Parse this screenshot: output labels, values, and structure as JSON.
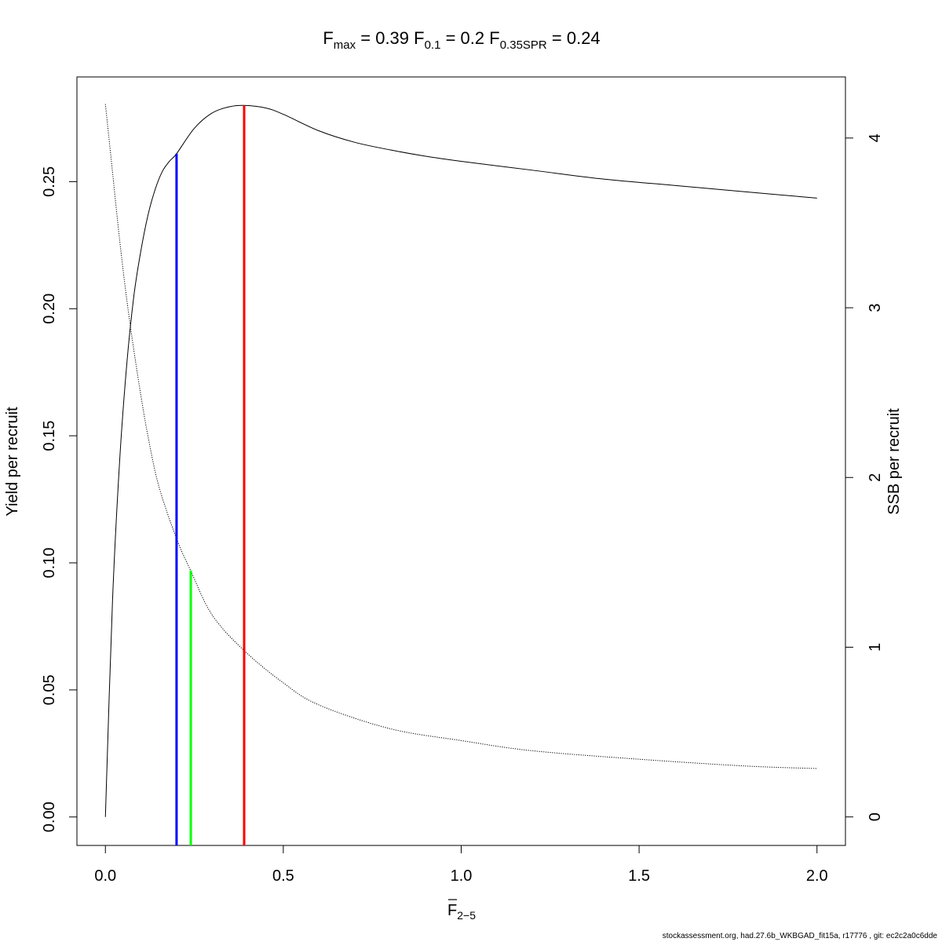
{
  "chart_data": {
    "type": "line",
    "title": {
      "fmax": {
        "symbol": "F",
        "sub": "max",
        "value": "0.39"
      },
      "f01": {
        "symbol": "F",
        "sub": "0.1",
        "value": "0.2"
      },
      "fspr": {
        "symbol": "F",
        "sub": "0.35SPR",
        "value": "0.24"
      }
    },
    "xlabel": {
      "symbol": "F",
      "sub": "2−5"
    },
    "ylabel_left": "Yield per recruit",
    "ylabel_right": "SSB per recruit",
    "xlim": [
      -0.08,
      2.08
    ],
    "ylim_left": [
      -0.0112,
      0.2912
    ],
    "ylim_right": [
      -0.168,
      4.36
    ],
    "x_ticks": [
      0.0,
      0.5,
      1.0,
      1.5,
      2.0
    ],
    "x_tick_labels": [
      "0.0",
      "0.5",
      "1.0",
      "1.5",
      "2.0"
    ],
    "y_left_ticks": [
      0.0,
      0.05,
      0.1,
      0.15,
      0.2,
      0.25
    ],
    "y_left_tick_labels": [
      "0.00",
      "0.05",
      "0.10",
      "0.15",
      "0.20",
      "0.25"
    ],
    "y_right_ticks": [
      0,
      1,
      2,
      3,
      4
    ],
    "y_right_tick_labels": [
      "0",
      "1",
      "2",
      "3",
      "4"
    ],
    "series": [
      {
        "axis": "left",
        "style": "solid",
        "color": "#000000",
        "x": [
          0.0,
          0.02,
          0.04,
          0.06,
          0.08,
          0.1,
          0.12,
          0.14,
          0.16,
          0.18,
          0.2,
          0.25,
          0.3,
          0.35,
          0.39,
          0.45,
          0.5,
          0.6,
          0.7,
          0.8,
          0.9,
          1.0,
          1.2,
          1.4,
          1.6,
          1.8,
          2.0
        ],
        "y": [
          0.0,
          0.085,
          0.14,
          0.178,
          0.205,
          0.223,
          0.237,
          0.247,
          0.254,
          0.258,
          0.261,
          0.271,
          0.277,
          0.2795,
          0.28,
          0.279,
          0.2765,
          0.27,
          0.2655,
          0.2625,
          0.26,
          0.258,
          0.2545,
          0.251,
          0.2485,
          0.246,
          0.2435
        ]
      },
      {
        "axis": "right",
        "style": "dotted",
        "color": "#000000",
        "x": [
          0.0,
          0.02,
          0.04,
          0.06,
          0.08,
          0.1,
          0.12,
          0.15,
          0.2,
          0.24,
          0.3,
          0.39,
          0.5,
          0.6,
          0.8,
          1.0,
          1.2,
          1.5,
          1.8,
          2.0
        ],
        "y": [
          4.2,
          3.8,
          3.4,
          3.05,
          2.75,
          2.48,
          2.24,
          1.95,
          1.64,
          1.45,
          1.19,
          0.98,
          0.79,
          0.66,
          0.52,
          0.45,
          0.39,
          0.34,
          0.3,
          0.285
        ]
      }
    ],
    "reference_lines": [
      {
        "name": "F0.1",
        "x": 0.2,
        "y_top": 0.261,
        "color": "#0000ff"
      },
      {
        "name": "F0.35SPR",
        "x": 0.24,
        "y_top": 0.097,
        "color": "#00ff00"
      },
      {
        "name": "Fmax",
        "x": 0.39,
        "y_top": 0.28,
        "color": "#ff0000"
      }
    ]
  },
  "footer": "stockassessment.org, had.27.6b_WKBGAD_fit15a, r17776 , git: ec2c2a0c6dde"
}
